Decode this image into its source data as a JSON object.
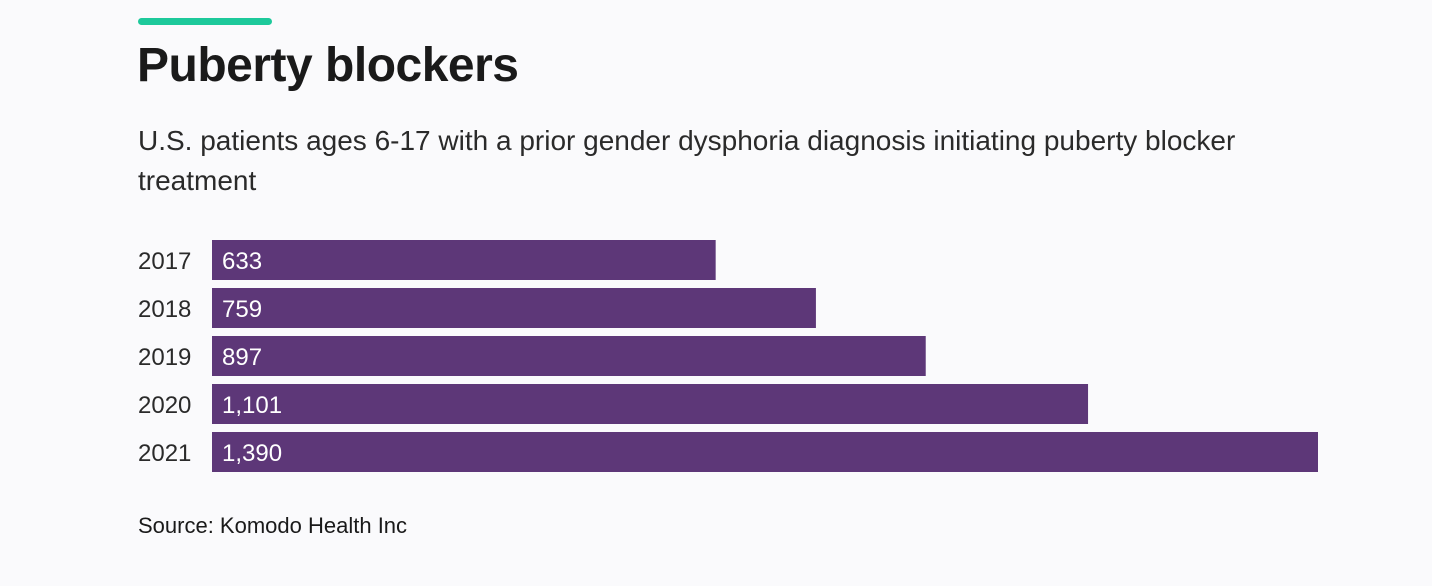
{
  "colors": {
    "accent": "#1dc99b",
    "bar": "#5d3778"
  },
  "header": {
    "title": "Puberty blockers",
    "subtitle": "U.S. patients ages 6-17 with a prior gender dysphoria diagnosis initiating puberty blocker treatment"
  },
  "chart_data": {
    "type": "bar",
    "orientation": "horizontal",
    "title": "Puberty blockers",
    "subtitle": "U.S. patients ages 6-17 with a prior gender dysphoria diagnosis initiating puberty blocker treatment",
    "categories": [
      "2017",
      "2018",
      "2019",
      "2020",
      "2021"
    ],
    "values": [
      633,
      759,
      897,
      1101,
      1390
    ],
    "value_labels": [
      "633",
      "759",
      "897",
      "1,101",
      "1,390"
    ],
    "xlim": [
      0,
      1390
    ],
    "grid": false,
    "legend": "none"
  },
  "footer": {
    "source": "Source: Komodo Health Inc"
  }
}
